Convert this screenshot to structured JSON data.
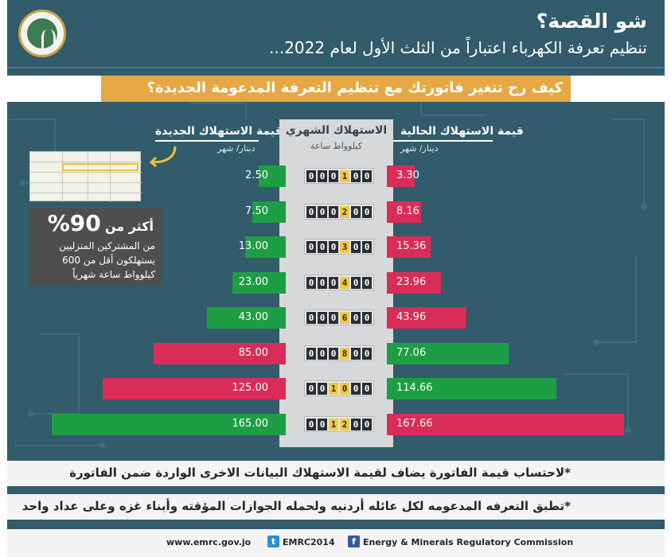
{
  "header": {
    "title": "شو القصة؟",
    "subtitle": "تنظيم تعرفة الكهرباء اعتباراً من الثلث الأول لعام 2022..."
  },
  "question": "كيف رح تتغير فاتورتك مع تنظيم التعرفة المدعومة الجديدة؟",
  "columns": {
    "new_value_label": "قيمة الاستهلاك الجديدة",
    "new_value_unit": "دينار/ شهر",
    "consumption_label": "الاستهلاك الشهري",
    "consumption_unit": "كيلوواط ساعة",
    "current_value_label": "قيمة الاستهلاك الحالية",
    "current_value_unit": "دينار/ شهر"
  },
  "info_box": {
    "percent": "90%",
    "prefix": "أكثر من",
    "line1": "من المشتركين المنزليين",
    "line2": "يستهلكون أقل من 600",
    "line3": "كيلوواط ساعة شهرياً"
  },
  "chart_data": {
    "type": "bar",
    "categories": [
      "100",
      "200",
      "300",
      "400",
      "600",
      "800",
      "1000",
      "1200"
    ],
    "meter_readings": [
      "000100",
      "000200",
      "000300",
      "000400",
      "000600",
      "000800",
      "001000",
      "001200"
    ],
    "series": [
      {
        "name": "قيمة الاستهلاك الجديدة",
        "values": [
          2.5,
          7.5,
          13.0,
          23.0,
          43.0,
          85.0,
          125.0,
          165.0
        ],
        "labels": [
          "2.50",
          "7.50",
          "13.00",
          "23.00",
          "43.00",
          "85.00",
          "125.00",
          "165.00"
        ],
        "colors": [
          "green",
          "green",
          "green",
          "green",
          "green",
          "red",
          "red",
          "green"
        ]
      },
      {
        "name": "قيمة الاستهلاك الحالية",
        "values": [
          3.3,
          8.16,
          15.36,
          23.96,
          43.96,
          77.06,
          114.66,
          167.66
        ],
        "labels": [
          "3.30",
          "8.16",
          "15.36",
          "23.96",
          "43.96",
          "77.06",
          "114.66",
          "167.66"
        ],
        "colors": [
          "red",
          "red",
          "red",
          "red",
          "red",
          "green",
          "green",
          "red"
        ]
      }
    ],
    "xlabel": "الاستهلاك الشهري",
    "ylabel": "دينار/ شهر"
  },
  "colors": {
    "background": "#325b6c",
    "green": "#1e9e44",
    "red": "#d92d57",
    "accent": "#e6a843"
  },
  "notes": [
    "*لاحتساب قيمة الفاتورة يضاف لقيمة الاستهلاك البيانات الاخرى الواردة ضمن الفاتورة",
    "*تطبق التعرفه المدعومه لكل عائله أردنيه ولحمله الجوازات المؤقته وأبناء غزه وعلى عداد واحد"
  ],
  "footer": {
    "website": "www.emrc.gov.jo",
    "twitter": "EMRC2014",
    "facebook": "Energy & Minerals Regulatory Commission"
  }
}
